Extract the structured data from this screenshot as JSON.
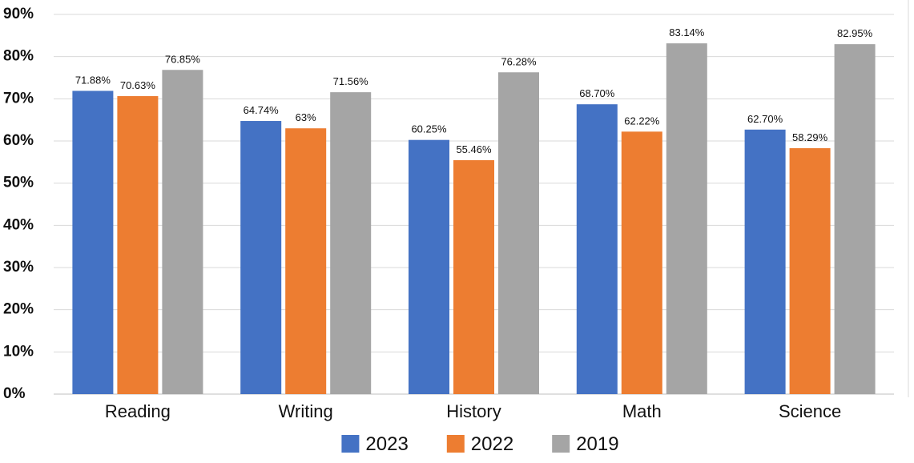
{
  "chart_data": {
    "type": "bar",
    "categories": [
      "Reading",
      "Writing",
      "History",
      "Math",
      "Science"
    ],
    "series": [
      {
        "name": "2023",
        "color": "#4472C4",
        "values": [
          71.88,
          64.74,
          60.25,
          68.7,
          62.7
        ],
        "labels": [
          "71.88%",
          "64.74%",
          "60.25%",
          "68.70%",
          "62.70%"
        ]
      },
      {
        "name": "2022",
        "color": "#ED7D31",
        "values": [
          70.63,
          63,
          55.46,
          62.22,
          58.29
        ],
        "labels": [
          "70.63%",
          "63%",
          "55.46%",
          "62.22%",
          "58.29%"
        ]
      },
      {
        "name": "2019",
        "color": "#A5A5A5",
        "values": [
          76.85,
          71.56,
          76.28,
          83.14,
          82.95
        ],
        "labels": [
          "76.85%",
          "71.56%",
          "76.28%",
          "83.14%",
          "82.95%"
        ]
      }
    ],
    "ylim": [
      0,
      90
    ],
    "yticks": [
      0,
      10,
      20,
      30,
      40,
      50,
      60,
      70,
      80,
      90
    ],
    "ytick_labels": [
      "0%",
      "10%",
      "20%",
      "30%",
      "40%",
      "50%",
      "60%",
      "70%",
      "80%",
      "90%"
    ],
    "grid": true,
    "legend_position": "bottom",
    "title": "",
    "xlabel": "",
    "ylabel": ""
  }
}
